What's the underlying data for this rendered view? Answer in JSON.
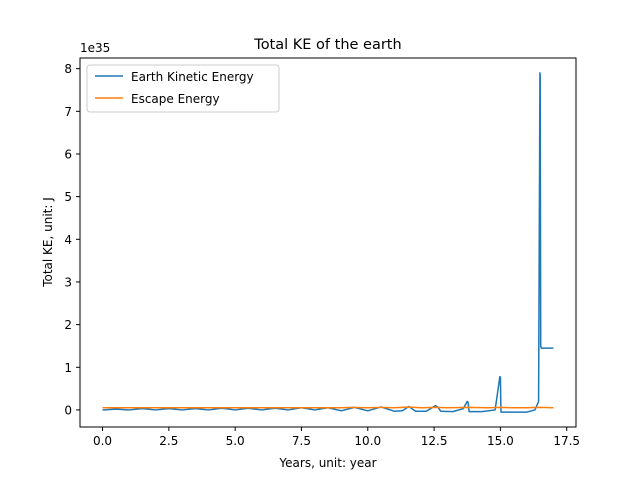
{
  "chart_data": {
    "type": "line",
    "title": "Total KE of the earth",
    "xlabel": "Years, unit: year",
    "ylabel": "Total KE, unit: J",
    "y_offset_label": "1e35",
    "xlim": [
      -0.85,
      17.85
    ],
    "ylim": [
      -0.4,
      8.25
    ],
    "xticks": [
      0.0,
      2.5,
      5.0,
      7.5,
      10.0,
      12.5,
      15.0,
      17.5
    ],
    "xtick_labels": [
      "0.0",
      "2.5",
      "5.0",
      "7.5",
      "10.0",
      "12.5",
      "15.0",
      "17.5"
    ],
    "yticks": [
      0,
      1,
      2,
      3,
      4,
      5,
      6,
      7,
      8
    ],
    "ytick_labels": [
      "0",
      "1",
      "2",
      "3",
      "4",
      "5",
      "6",
      "7",
      "8"
    ],
    "grid": false,
    "legend_position": "upper-left",
    "series": [
      {
        "name": "Earth Kinetic Energy",
        "color": "#1f77b4",
        "x": [
          0,
          0.5,
          1.0,
          1.5,
          2.0,
          2.5,
          3.0,
          3.5,
          4.0,
          4.5,
          5.0,
          5.5,
          6.0,
          6.5,
          7.0,
          7.5,
          8.0,
          8.5,
          9.0,
          9.5,
          10.0,
          10.5,
          11.0,
          11.3,
          11.55,
          11.8,
          12.2,
          12.55,
          12.65,
          12.75,
          13.2,
          13.6,
          13.75,
          13.78,
          13.82,
          13.9,
          14.3,
          14.8,
          14.98,
          15.0,
          15.02,
          15.06,
          15.5,
          16.0,
          16.3,
          16.44,
          16.49,
          16.5,
          16.52,
          16.54,
          16.58,
          16.6,
          17.0
        ],
        "values": [
          0.0,
          0.02,
          0.0,
          0.03,
          0.0,
          0.03,
          0.0,
          0.03,
          0.0,
          0.04,
          0.0,
          0.04,
          0.0,
          0.04,
          0.0,
          0.05,
          0.0,
          0.05,
          -0.02,
          0.06,
          -0.02,
          0.07,
          -0.03,
          -0.02,
          0.08,
          -0.03,
          -0.03,
          0.1,
          0.06,
          -0.03,
          -0.04,
          0.03,
          0.2,
          0.18,
          -0.04,
          -0.04,
          -0.04,
          0.0,
          0.78,
          0.77,
          -0.05,
          -0.05,
          -0.05,
          -0.05,
          0.0,
          0.2,
          7.9,
          7.85,
          1.5,
          1.45,
          1.45,
          1.45,
          1.45
        ]
      },
      {
        "name": "Escape Energy",
        "color": "#ff7f0e",
        "x": [
          0,
          1.5,
          3.0,
          4.5,
          6.0,
          7.5,
          9.0,
          9.4,
          10.0,
          10.5,
          11.0,
          11.55,
          12.0,
          12.55,
          13.0,
          13.8,
          14.5,
          15.0,
          15.5,
          16.0,
          16.5,
          17.0
        ],
        "values": [
          0.05,
          0.05,
          0.05,
          0.05,
          0.05,
          0.05,
          0.05,
          0.06,
          0.05,
          0.06,
          0.05,
          0.07,
          0.05,
          0.06,
          0.05,
          0.06,
          0.05,
          0.06,
          0.05,
          0.05,
          0.06,
          0.05
        ]
      }
    ]
  }
}
